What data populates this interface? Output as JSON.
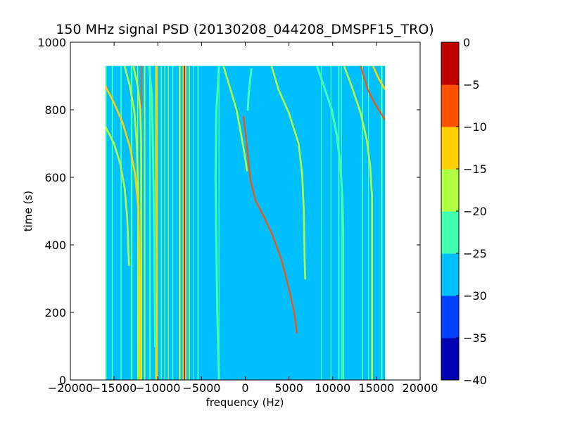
{
  "chart_data": {
    "type": "heatmap",
    "title": "150 MHz signal PSD (20130208_044208_DMSPF15_TRO)",
    "xlabel": "frequency (Hz)",
    "ylabel": "time (s)",
    "xlim": [
      -20000,
      20000
    ],
    "ylim": [
      0,
      1000
    ],
    "x_ticks": [
      -20000,
      -15000,
      -10000,
      -5000,
      0,
      5000,
      10000,
      15000,
      20000
    ],
    "x_tick_labels": [
      "−20000",
      "−15000",
      "−10000",
      "−5000",
      "0",
      "5000",
      "10000",
      "15000",
      "20000"
    ],
    "y_ticks": [
      0,
      200,
      400,
      600,
      800,
      1000
    ],
    "y_tick_labels": [
      "0",
      "200",
      "400",
      "600",
      "800",
      "1000"
    ],
    "data_extent": {
      "freq_min": -16000,
      "freq_max": 16000,
      "time_min": 0,
      "time_max": 930
    },
    "background_level": -27.5,
    "colorbar": {
      "levels": [
        -40,
        -35,
        -30,
        -25,
        -20,
        -15,
        -10,
        -5,
        0
      ],
      "tick_labels": [
        "−40",
        "−35",
        "−30",
        "−25",
        "−20",
        "−15",
        "−10",
        "−5",
        "0"
      ],
      "colors": [
        "#0000b3",
        "#0040ff",
        "#00bfff",
        "#40ffb0",
        "#b0ff40",
        "#ffd000",
        "#ff5000",
        "#c00000"
      ]
    },
    "vertical_lines": [
      {
        "freq": -16000,
        "width": 300,
        "level": -22.5
      },
      {
        "freq": -15200,
        "width": 150,
        "level": -22.5
      },
      {
        "freq": -14200,
        "width": 150,
        "level": -22.5
      },
      {
        "freq": -13000,
        "width": 200,
        "level": -22.5
      },
      {
        "freq": -12300,
        "width": 100,
        "level": -17.5
      },
      {
        "freq": -11900,
        "width": 120,
        "level": -7.5
      },
      {
        "freq": -11500,
        "width": 150,
        "level": -17.5
      },
      {
        "freq": -10900,
        "width": 200,
        "level": -22.5
      },
      {
        "freq": -10300,
        "width": 100,
        "level": -17.5
      },
      {
        "freq": -10100,
        "width": 200,
        "level": -12.5
      },
      {
        "freq": -9600,
        "width": 150,
        "level": -22.5
      },
      {
        "freq": -9200,
        "width": 100,
        "level": -17.5
      },
      {
        "freq": -8800,
        "width": 100,
        "level": -17.5
      },
      {
        "freq": -8300,
        "width": 150,
        "level": -22.5
      },
      {
        "freq": -7500,
        "width": 200,
        "level": -17.5
      },
      {
        "freq": -7100,
        "width": 150,
        "level": -12.5
      },
      {
        "freq": -6950,
        "width": 100,
        "level": -2.5
      },
      {
        "freq": -6800,
        "width": 150,
        "level": -12.5
      },
      {
        "freq": -6400,
        "width": 120,
        "level": -17.5
      },
      {
        "freq": -5900,
        "width": 100,
        "level": -22.5
      },
      {
        "freq": -5400,
        "width": 150,
        "level": -22.5
      },
      {
        "freq": -3000,
        "width": 100,
        "level": -22.5
      },
      {
        "freq": 8700,
        "width": 100,
        "level": -22.5
      },
      {
        "freq": 9800,
        "width": 100,
        "level": -22.5
      },
      {
        "freq": 10700,
        "width": 150,
        "level": -22.5
      },
      {
        "freq": 11000,
        "width": 100,
        "level": -22.5
      },
      {
        "freq": 13400,
        "width": 150,
        "level": -22.5
      },
      {
        "freq": 14100,
        "width": 100,
        "level": -22.5
      },
      {
        "freq": 15600,
        "width": 200,
        "level": -22.5
      }
    ],
    "tracks": [
      {
        "level": -17.5,
        "points": [
          [
            -12800,
            930
          ],
          [
            -12300,
            870
          ],
          [
            -12000,
            800
          ],
          [
            -11900,
            700
          ],
          [
            -11900,
            0
          ]
        ]
      },
      {
        "level": -17.5,
        "points": [
          [
            -13800,
            930
          ],
          [
            -13200,
            870
          ],
          [
            -12700,
            800
          ],
          [
            -12400,
            700
          ],
          [
            -12200,
            500
          ],
          [
            -12150,
            0
          ]
        ]
      },
      {
        "level": -12.5,
        "points": [
          [
            -16000,
            870
          ],
          [
            -15000,
            820
          ],
          [
            -14000,
            760
          ],
          [
            -13200,
            690
          ],
          [
            -12600,
            610
          ],
          [
            -12200,
            500
          ],
          [
            -12100,
            300
          ],
          [
            -12050,
            0
          ]
        ]
      },
      {
        "level": -17.5,
        "points": [
          [
            -16000,
            750
          ],
          [
            -15000,
            700
          ],
          [
            -14300,
            640
          ],
          [
            -13800,
            570
          ],
          [
            -13500,
            480
          ],
          [
            -13300,
            340
          ]
        ]
      },
      {
        "level": -22.5,
        "points": [
          [
            -11000,
            930
          ],
          [
            -10700,
            850
          ],
          [
            -10600,
            750
          ],
          [
            -10500,
            600
          ],
          [
            -10400,
            400
          ],
          [
            -10300,
            100
          ]
        ]
      },
      {
        "level": -22.5,
        "points": [
          [
            -3000,
            930
          ],
          [
            -3300,
            800
          ],
          [
            -3400,
            600
          ],
          [
            -3300,
            400
          ],
          [
            -3200,
            200
          ],
          [
            -3000,
            0
          ]
        ]
      },
      {
        "level": -17.5,
        "points": [
          [
            -2500,
            930
          ],
          [
            -1800,
            870
          ],
          [
            -1000,
            800
          ],
          [
            -500,
            730
          ],
          [
            -100,
            670
          ],
          [
            200,
            620
          ]
        ]
      },
      {
        "level": -7.5,
        "points": [
          [
            -200,
            780
          ],
          [
            200,
            690
          ],
          [
            600,
            590
          ],
          [
            1200,
            530
          ],
          [
            2200,
            480
          ],
          [
            3100,
            430
          ],
          [
            4100,
            360
          ],
          [
            5000,
            270
          ],
          [
            5600,
            200
          ],
          [
            5900,
            140
          ]
        ]
      },
      {
        "level": -17.5,
        "points": [
          [
            3000,
            930
          ],
          [
            3800,
            860
          ],
          [
            5000,
            790
          ],
          [
            6100,
            700
          ],
          [
            6500,
            610
          ],
          [
            6700,
            500
          ],
          [
            6800,
            350
          ],
          [
            6850,
            300
          ]
        ]
      },
      {
        "level": -22.5,
        "points": [
          [
            8200,
            930
          ],
          [
            9000,
            870
          ],
          [
            9900,
            800
          ],
          [
            10500,
            720
          ],
          [
            10900,
            630
          ],
          [
            11100,
            540
          ],
          [
            11200,
            430
          ],
          [
            11200,
            0
          ]
        ]
      },
      {
        "level": -17.5,
        "points": [
          [
            11300,
            930
          ],
          [
            12300,
            860
          ],
          [
            13200,
            790
          ],
          [
            13900,
            710
          ],
          [
            14300,
            630
          ],
          [
            14500,
            540
          ],
          [
            14500,
            0
          ]
        ]
      },
      {
        "level": -7.5,
        "points": [
          [
            13200,
            930
          ],
          [
            14000,
            860
          ],
          [
            14800,
            820
          ],
          [
            15500,
            790
          ],
          [
            16000,
            770
          ]
        ]
      },
      {
        "level": -12.5,
        "points": [
          [
            14600,
            930
          ],
          [
            15300,
            890
          ],
          [
            16000,
            860
          ]
        ]
      },
      {
        "level": -22.5,
        "points": [
          [
            700,
            920
          ],
          [
            400,
            850
          ],
          [
            300,
            800
          ]
        ]
      }
    ]
  }
}
